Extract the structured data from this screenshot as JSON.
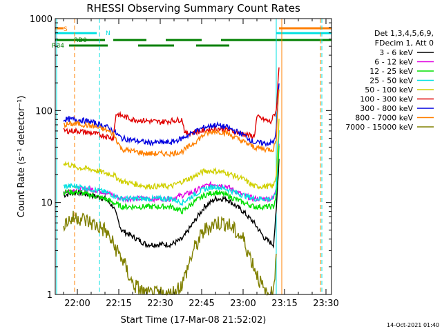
{
  "chart_data": {
    "type": "line",
    "title": "RHESSI Observing Summary Count Rates",
    "xlabel": "Start Time (17-Mar-08 21:52:02)",
    "ylabel": "Count Rate (s⁻¹ detector⁻¹)",
    "y_scale": "log",
    "ylim": [
      1,
      1000
    ],
    "xlim": [
      "21:52",
      "23:32"
    ],
    "x_ticks": [
      "22:00",
      "22:15",
      "22:30",
      "22:45",
      "23:00",
      "23:15",
      "23:30"
    ],
    "y_ticks": [
      "1",
      "10",
      "100",
      "1000"
    ],
    "legend_header": [
      "Det 1,3,4,5,6,9,",
      "FDecim 1, Att 0"
    ],
    "timestamp": "14-Oct-2021 01:40",
    "series": [
      {
        "name": "3 - 6 keV",
        "color": "#000000",
        "x": [
          "21:55",
          "22:00",
          "22:05",
          "22:10",
          "22:13",
          "22:16",
          "22:25",
          "22:34",
          "22:38",
          "22:42",
          "22:46",
          "22:50",
          "22:54",
          "23:00",
          "23:04",
          "23:08",
          "23:11",
          "23:12",
          "23:13"
        ],
        "y": [
          12,
          13,
          12,
          11,
          9,
          5,
          3.5,
          3.5,
          4,
          6,
          9,
          11,
          11,
          8,
          6,
          4,
          3.5,
          8,
          30
        ]
      },
      {
        "name": "6 - 12 keV",
        "color": "#e000e0",
        "x": [
          "21:55",
          "22:00",
          "22:05",
          "22:10",
          "22:13",
          "22:16",
          "22:25",
          "22:34",
          "22:38",
          "22:42",
          "22:46",
          "22:50",
          "22:54",
          "23:00",
          "23:04",
          "23:08",
          "23:11",
          "23:12",
          "23:13"
        ],
        "y": [
          13,
          14,
          14,
          13,
          12,
          11,
          11,
          11,
          12,
          13,
          15,
          16,
          15,
          12,
          11,
          11,
          11,
          15,
          45
        ]
      },
      {
        "name": "12 - 25 keV",
        "color": "#00e000",
        "x": [
          "21:55",
          "22:00",
          "22:05",
          "22:10",
          "22:13",
          "22:16",
          "22:25",
          "22:34",
          "22:38",
          "22:42",
          "22:46",
          "22:50",
          "22:54",
          "23:00",
          "23:04",
          "23:08",
          "23:11",
          "23:12",
          "23:13"
        ],
        "y": [
          13,
          13,
          12,
          11,
          10,
          9,
          9,
          9,
          8,
          10,
          12,
          13,
          12,
          10,
          9,
          9,
          9,
          12,
          40
        ]
      },
      {
        "name": "25 - 50 keV",
        "color": "#00e0e0",
        "x": [
          "21:55",
          "22:00",
          "22:05",
          "22:10",
          "22:13",
          "22:16",
          "22:25",
          "22:34",
          "22:38",
          "22:42",
          "22:46",
          "22:50",
          "22:54",
          "23:00",
          "23:04",
          "23:08",
          "23:11",
          "23:12",
          "23:13"
        ],
        "y": [
          15,
          15,
          14,
          13,
          12,
          11,
          11,
          11,
          10,
          12,
          14,
          15,
          14,
          12,
          11,
          11,
          11,
          14,
          60
        ]
      },
      {
        "name": "50 - 100 keV",
        "color": "#d0d000",
        "x": [
          "21:55",
          "22:00",
          "22:05",
          "22:10",
          "22:13",
          "22:16",
          "22:25",
          "22:34",
          "22:38",
          "22:42",
          "22:46",
          "22:50",
          "22:54",
          "23:00",
          "23:04",
          "23:08",
          "23:11",
          "23:12",
          "23:13"
        ],
        "y": [
          27,
          24,
          23,
          21,
          20,
          17,
          15,
          15,
          17,
          19,
          22,
          22,
          21,
          18,
          15,
          15,
          15,
          20,
          80
        ]
      },
      {
        "name": "100 - 300 keV",
        "color": "#e00000",
        "x": [
          "21:55",
          "22:00",
          "22:05",
          "22:10",
          "22:13",
          "22:14",
          "22:20",
          "22:30",
          "22:38",
          "22:39",
          "22:45",
          "22:50",
          "22:54",
          "23:00",
          "23:04",
          "23:05",
          "23:10",
          "23:12",
          "23:13"
        ],
        "y": [
          60,
          60,
          57,
          53,
          50,
          92,
          80,
          75,
          80,
          56,
          60,
          64,
          62,
          56,
          52,
          85,
          75,
          100,
          300
        ]
      },
      {
        "name": "300 - 800 keV",
        "color": "#0000e0",
        "x": [
          "21:55",
          "22:00",
          "22:05",
          "22:10",
          "22:13",
          "22:16",
          "22:25",
          "22:34",
          "22:38",
          "22:42",
          "22:46",
          "22:50",
          "22:54",
          "23:00",
          "23:04",
          "23:08",
          "23:11",
          "23:12",
          "23:13"
        ],
        "y": [
          80,
          80,
          75,
          68,
          60,
          50,
          45,
          45,
          50,
          58,
          66,
          70,
          66,
          55,
          45,
          44,
          45,
          60,
          200
        ]
      },
      {
        "name": "800 - 7000 keV",
        "color": "#ff8000",
        "x": [
          "21:55",
          "22:00",
          "22:05",
          "22:10",
          "22:13",
          "22:16",
          "22:25",
          "22:34",
          "22:38",
          "22:42",
          "22:46",
          "22:50",
          "22:54",
          "23:00",
          "23:04",
          "23:08",
          "23:11",
          "23:12",
          "23:13"
        ],
        "y": [
          70,
          72,
          68,
          62,
          56,
          38,
          34,
          34,
          36,
          44,
          55,
          60,
          57,
          46,
          40,
          38,
          38,
          50,
          180
        ]
      },
      {
        "name": "7000 - 15000 keV",
        "color": "#808000",
        "x": [
          "21:55",
          "22:00",
          "22:05",
          "22:10",
          "22:13",
          "22:16",
          "22:20",
          "22:25",
          "22:34",
          "22:38",
          "22:42",
          "22:46",
          "22:50",
          "22:54",
          "23:00",
          "23:04",
          "23:08",
          "23:11",
          "23:12"
        ],
        "y": [
          6,
          7,
          6,
          5,
          3.5,
          2.5,
          1.3,
          1,
          1,
          1.3,
          3,
          5,
          6,
          6,
          4,
          2,
          1,
          1,
          3
        ]
      }
    ],
    "flag_bars": [
      {
        "name": "S",
        "color": "#ff8000",
        "row": 0,
        "segments": [
          [
            "21:52",
            "21:55"
          ],
          [
            "23:13",
            "23:32"
          ]
        ]
      },
      {
        "name": "N",
        "color": "#00e0e0",
        "row": 1,
        "segments": [
          [
            "21:52",
            "22:07"
          ],
          [
            "23:12",
            "23:32"
          ]
        ]
      },
      {
        "name": "RD0",
        "color": "#008000",
        "row": 2,
        "segments": [
          [
            "21:52",
            "22:10"
          ],
          [
            "22:13",
            "22:25"
          ],
          [
            "22:32",
            "22:45"
          ],
          [
            "22:52",
            "23:32"
          ]
        ]
      },
      {
        "name": "RB4",
        "color": "#008000",
        "row": 3,
        "segments": [
          [
            "21:57",
            "22:11"
          ],
          [
            "22:22",
            "22:35"
          ],
          [
            "22:43",
            "22:55"
          ]
        ]
      }
    ],
    "vertical_lines": [
      {
        "x": "21:52:30",
        "color": "#00e0e0",
        "style": "solid"
      },
      {
        "x": "21:59",
        "color": "#ff8000",
        "style": "dashed"
      },
      {
        "x": "22:08",
        "color": "#00e0e0",
        "style": "dashed"
      },
      {
        "x": "23:12",
        "color": "#00e0e0",
        "style": "solid"
      },
      {
        "x": "23:14",
        "color": "#ff8000",
        "style": "solid"
      },
      {
        "x": "23:28",
        "color": "#ff8000",
        "style": "dashed"
      },
      {
        "x": "23:28:30",
        "color": "#00e0e0",
        "style": "dashed"
      }
    ]
  }
}
